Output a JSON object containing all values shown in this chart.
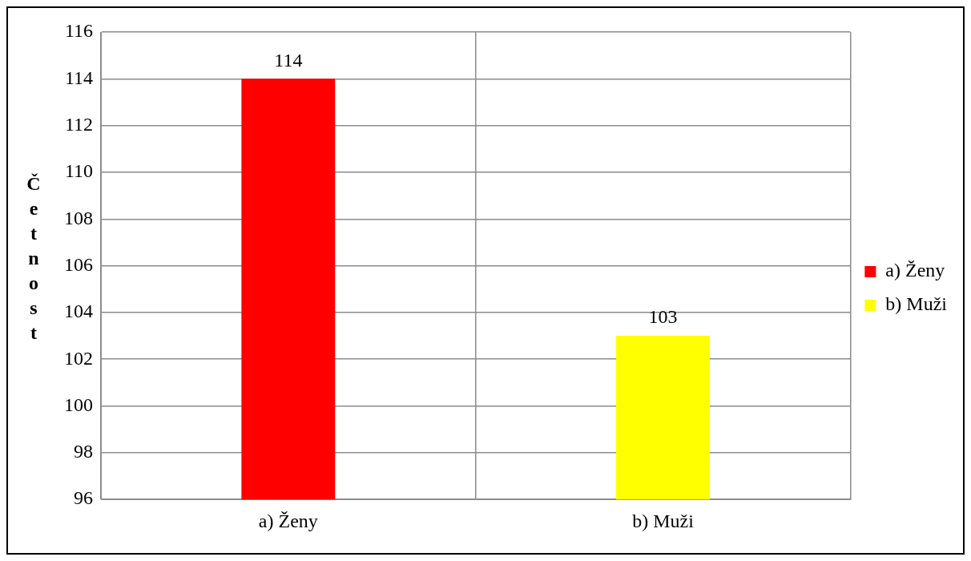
{
  "chart_data": {
    "type": "bar",
    "ylabel": "Četnost",
    "categories": [
      "a) Ženy",
      "b) Muži"
    ],
    "series": [
      {
        "name": "a) Ženy",
        "color": "#ff0000",
        "values": [
          114,
          null
        ]
      },
      {
        "name": "b) Muži",
        "color": "#ffff00",
        "values": [
          null,
          103
        ]
      }
    ],
    "ylim": [
      96,
      116
    ],
    "yticks": [
      96,
      98,
      100,
      102,
      104,
      106,
      108,
      110,
      112,
      114,
      116
    ],
    "grid": true,
    "legend": "right",
    "data_labels": true
  }
}
